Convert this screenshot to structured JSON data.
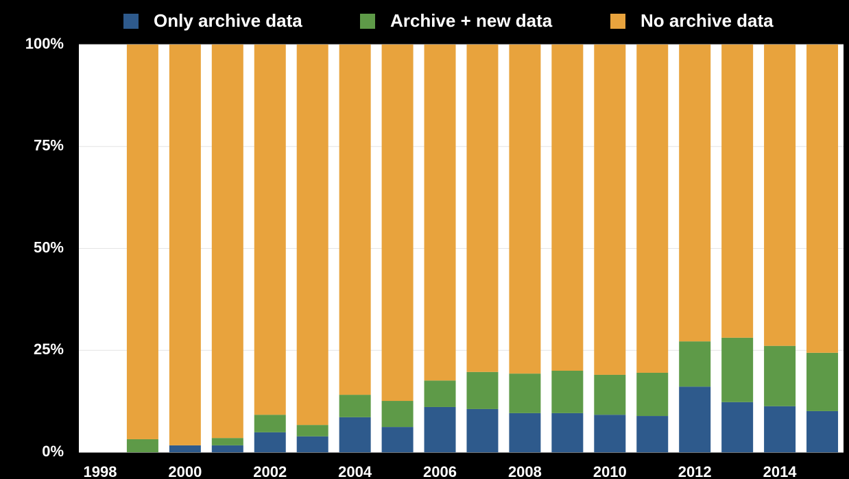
{
  "chart_data": {
    "type": "stacked_bar",
    "categories": [
      "1998",
      null,
      "2000",
      null,
      "2002",
      null,
      "2004",
      null,
      "2006",
      null,
      "2008",
      null,
      "2010",
      null,
      "2012",
      null,
      "2014",
      null
    ],
    "series": [
      {
        "name": "Only archive data",
        "color": "#2e5a8c",
        "values": [
          null,
          0,
          1.7,
          1.7,
          4.9,
          3.9,
          8.6,
          6.2,
          11.1,
          10.6,
          9.6,
          9.6,
          9.2,
          8.9,
          16.1,
          12.3,
          11.3,
          10.1
        ]
      },
      {
        "name": "Archive + new data",
        "color": "#5e9a48",
        "values": [
          null,
          3.2,
          0,
          1.8,
          4.3,
          2.8,
          5.5,
          6.4,
          6.5,
          9.1,
          9.7,
          10.4,
          9.8,
          10.6,
          11.1,
          15.8,
          14.8,
          14.3
        ]
      },
      {
        "name": "No archive data",
        "color": "#e8a33d",
        "values": [
          null,
          96.8,
          98.3,
          96.5,
          90.8,
          93.3,
          85.9,
          87.4,
          82.4,
          80.3,
          80.7,
          80.0,
          81.0,
          80.5,
          72.8,
          71.9,
          73.9,
          75.6
        ]
      }
    ],
    "ylim": [
      0,
      100
    ],
    "yticks": [
      {
        "value": 0,
        "label": "0%"
      },
      {
        "value": 25,
        "label": "25%"
      },
      {
        "value": 50,
        "label": "50%"
      },
      {
        "value": 75,
        "label": "75%"
      },
      {
        "value": 100,
        "label": "100%"
      }
    ],
    "grid": true,
    "legend": "top"
  }
}
